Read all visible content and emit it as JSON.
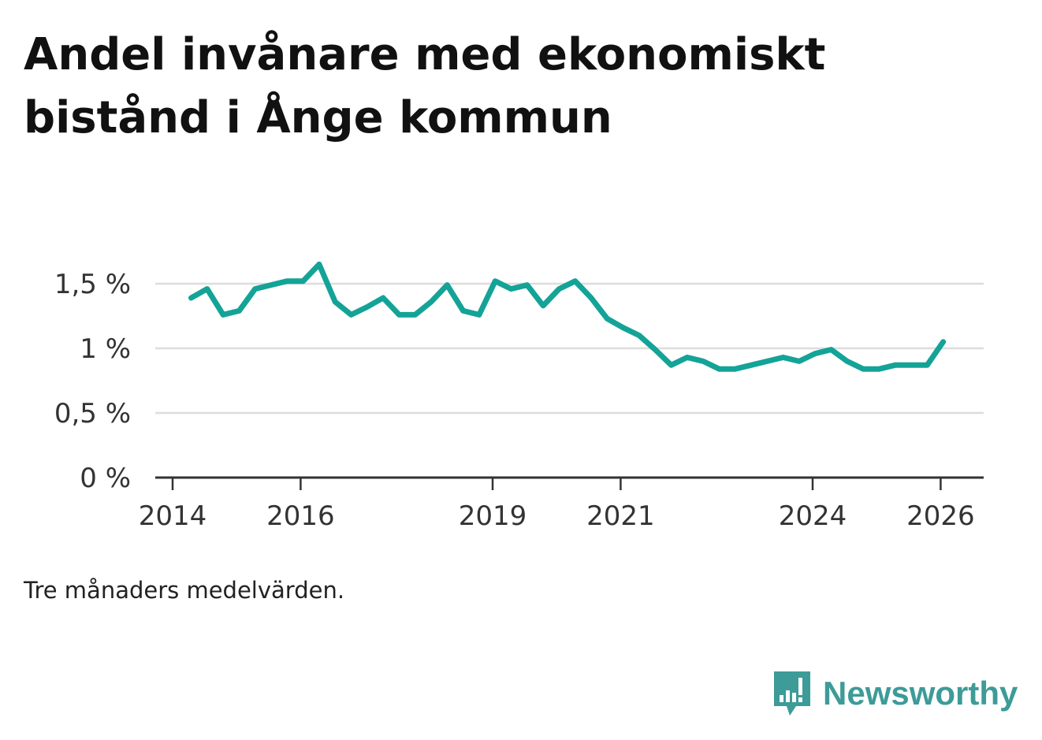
{
  "header": {
    "title": "Andel invånare med ekonomiskt bistånd i Ånge kommun"
  },
  "footnote": "Tre månaders medelvärden.",
  "brand": {
    "name": "Newsworthy",
    "color": "#3d9b98",
    "logo_icon": "bar-chart-speech-bubble-icon"
  },
  "colors": {
    "line": "#14a397",
    "grid": "#dddddd",
    "axis": "#333333"
  },
  "chart_data": {
    "type": "line",
    "title": "Andel invånare med ekonomiskt bistånd i Ånge kommun",
    "xlabel": "",
    "ylabel": "",
    "ylim": [
      0,
      1.5
    ],
    "xlim": [
      2014,
      2026.5
    ],
    "grid": true,
    "y_ticks": [
      {
        "value": 0,
        "label": "0 %"
      },
      {
        "value": 0.5,
        "label": "0,5 %"
      },
      {
        "value": 1.0,
        "label": "1 %"
      },
      {
        "value": 1.5,
        "label": "1,5 %"
      }
    ],
    "x_ticks": [
      {
        "value": 2014,
        "label": "2014"
      },
      {
        "value": 2016,
        "label": "2016"
      },
      {
        "value": 2019,
        "label": "2019"
      },
      {
        "value": 2021,
        "label": "2021"
      },
      {
        "value": 2024,
        "label": "2024"
      },
      {
        "value": 2026,
        "label": "2026"
      }
    ],
    "series": [
      {
        "name": "Andel invånare med ekonomiskt bistånd",
        "x": [
          2014.29,
          2014.54,
          2014.79,
          2015.04,
          2015.29,
          2015.54,
          2015.79,
          2016.04,
          2016.29,
          2016.54,
          2016.79,
          2017.04,
          2017.29,
          2017.54,
          2017.79,
          2018.04,
          2018.29,
          2018.54,
          2018.79,
          2019.04,
          2019.29,
          2019.54,
          2019.79,
          2020.04,
          2020.29,
          2020.54,
          2020.79,
          2021.04,
          2021.29,
          2021.54,
          2021.79,
          2022.04,
          2022.29,
          2022.54,
          2022.79,
          2023.04,
          2023.29,
          2023.54,
          2023.79,
          2024.04,
          2024.29,
          2024.54,
          2024.79,
          2025.04,
          2025.29,
          2025.54,
          2025.79,
          2026.04
        ],
        "values": [
          1.39,
          1.46,
          1.26,
          1.29,
          1.46,
          1.49,
          1.52,
          1.52,
          1.65,
          1.36,
          1.26,
          1.32,
          1.39,
          1.26,
          1.26,
          1.36,
          1.49,
          1.29,
          1.26,
          1.52,
          1.46,
          1.49,
          1.33,
          1.46,
          1.52,
          1.39,
          1.23,
          1.16,
          1.1,
          0.99,
          0.87,
          0.93,
          0.9,
          0.84,
          0.84,
          0.87,
          0.9,
          0.93,
          0.9,
          0.96,
          0.99,
          0.9,
          0.84,
          0.84,
          0.87,
          0.87,
          0.87,
          1.05
        ]
      }
    ]
  }
}
